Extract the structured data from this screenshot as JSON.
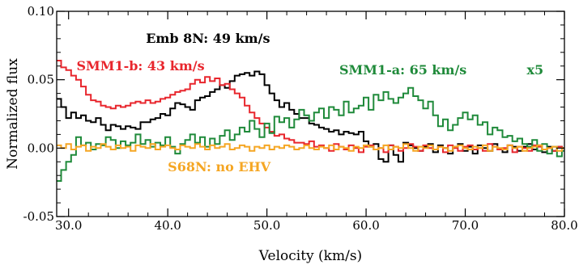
{
  "chart_data": {
    "type": "line",
    "xlabel": "Velocity (km/s)",
    "ylabel": "Normalized flux",
    "xlim": [
      28.8,
      80.0
    ],
    "ylim": [
      -0.05,
      0.1
    ],
    "x_ticks": [
      30.0,
      40.0,
      50.0,
      60.0,
      70.0,
      80.0
    ],
    "x_tick_labels": [
      "30.0",
      "40.0",
      "50.0",
      "60.0",
      "70.0",
      "80.0"
    ],
    "y_ticks": [
      -0.05,
      0.0,
      0.05,
      0.1
    ],
    "y_tick_labels": [
      "-0.05",
      "0.00",
      "0.05",
      "0.10"
    ],
    "grid": false,
    "annotations": [
      {
        "text": "Emb 8N: 49 km/s",
        "color": "#000000",
        "x": 37.8,
        "y": 0.077
      },
      {
        "text": "SMM1-b: 43 km/s",
        "color": "#e8262d",
        "x": 30.8,
        "y": 0.057
      },
      {
        "text": "SMM1-a: 65 km/s",
        "color": "#1f8a3a",
        "x": 57.3,
        "y": 0.054
      },
      {
        "text": "x5",
        "color": "#1f8a3a",
        "x": 76.2,
        "y": 0.054
      },
      {
        "text": "S68N: no EHV",
        "color": "#f5a623",
        "x": 40.0,
        "y": -0.017
      }
    ],
    "series": [
      {
        "color": "#000000",
        "x": [
          29,
          29.5,
          30,
          30.5,
          31,
          31.5,
          32,
          32.5,
          33,
          33.5,
          34,
          34.5,
          35,
          35.5,
          36,
          36.5,
          37,
          37.5,
          38,
          38.5,
          39,
          39.5,
          40,
          40.5,
          41,
          41.5,
          42,
          42.5,
          43,
          43.5,
          44,
          44.5,
          45,
          45.5,
          46,
          46.5,
          47,
          47.5,
          48,
          48.5,
          49,
          49.5,
          50,
          50.5,
          51,
          51.5,
          52,
          52.5,
          53,
          53.5,
          54,
          54.5,
          55,
          55.5,
          56,
          56.5,
          57,
          57.5,
          58,
          58.5,
          59,
          59.5,
          60,
          60.5,
          61,
          61.5,
          62,
          62.5,
          63,
          63.5,
          64,
          64.5,
          65,
          65.5,
          66,
          66.5,
          67,
          67.5,
          68,
          68.5,
          69,
          69.5,
          70,
          70.5,
          71,
          71.5,
          72,
          72.5,
          73,
          73.5,
          74,
          74.5,
          75,
          75.5,
          76,
          76.5,
          77,
          77.5,
          78,
          78.5,
          79,
          79.5,
          80
        ],
        "values": [
          0.036,
          0.03,
          0.022,
          0.026,
          0.022,
          0.024,
          0.02,
          0.019,
          0.022,
          0.017,
          0.013,
          0.017,
          0.016,
          0.014,
          0.016,
          0.015,
          0.014,
          0.019,
          0.019,
          0.021,
          0.022,
          0.025,
          0.024,
          0.029,
          0.033,
          0.032,
          0.03,
          0.028,
          0.035,
          0.037,
          0.038,
          0.041,
          0.043,
          0.046,
          0.044,
          0.049,
          0.053,
          0.054,
          0.055,
          0.053,
          0.056,
          0.054,
          0.046,
          0.04,
          0.035,
          0.03,
          0.033,
          0.028,
          0.025,
          0.022,
          0.022,
          0.018,
          0.017,
          0.015,
          0.014,
          0.012,
          0.013,
          0.01,
          0.012,
          0.011,
          0.01,
          0.012,
          0.005,
          0.001,
          0.003,
          -0.008,
          -0.01,
          0.002,
          -0.005,
          -0.01,
          0.004,
          0.002,
          0.0,
          -0.002,
          0.001,
          0.003,
          -0.003,
          0.002,
          0.0,
          -0.004,
          0.001,
          0.003,
          -0.002,
          0.001,
          -0.004,
          0.002,
          0.0,
          -0.002,
          0.003,
          -0.001,
          -0.003,
          0.002,
          0.001,
          -0.002,
          0.001,
          0.003,
          -0.001,
          0.002,
          -0.003,
          0.001,
          -0.002,
          0.001,
          0.0
        ]
      },
      {
        "color": "#e8262d",
        "x": [
          29,
          29.5,
          30,
          30.5,
          31,
          31.5,
          32,
          32.5,
          33,
          33.5,
          34,
          34.5,
          35,
          35.5,
          36,
          36.5,
          37,
          37.5,
          38,
          38.5,
          39,
          39.5,
          40,
          40.5,
          41,
          41.5,
          42,
          42.5,
          43,
          43.5,
          44,
          44.5,
          45,
          45.5,
          46,
          46.5,
          47,
          47.5,
          48,
          48.5,
          49,
          49.5,
          50,
          50.5,
          51,
          51.5,
          52,
          52.5,
          53,
          53.5,
          54,
          54.5,
          55,
          55.5,
          56,
          56.5,
          57,
          57.5,
          58,
          58.5,
          59,
          59.5,
          60,
          60.5,
          61,
          61.5,
          62,
          62.5,
          63,
          63.5,
          64,
          64.5,
          65,
          65.5,
          66,
          66.5,
          67,
          67.5,
          68,
          68.5,
          69,
          69.5,
          70,
          70.5,
          71,
          71.5,
          72,
          72.5,
          73,
          73.5,
          74,
          74.5,
          75,
          75.5,
          76,
          76.5,
          77,
          77.5,
          78,
          78.5,
          79,
          79.5,
          80
        ],
        "values": [
          0.064,
          0.059,
          0.057,
          0.053,
          0.05,
          0.045,
          0.039,
          0.035,
          0.034,
          0.031,
          0.03,
          0.029,
          0.031,
          0.03,
          0.031,
          0.033,
          0.034,
          0.033,
          0.035,
          0.033,
          0.034,
          0.036,
          0.037,
          0.039,
          0.041,
          0.042,
          0.043,
          0.047,
          0.05,
          0.048,
          0.052,
          0.049,
          0.051,
          0.046,
          0.047,
          0.043,
          0.04,
          0.037,
          0.031,
          0.026,
          0.022,
          0.018,
          0.015,
          0.012,
          0.009,
          0.01,
          0.007,
          0.006,
          0.004,
          0.004,
          0.003,
          0.005,
          0.001,
          0.002,
          0.0,
          -0.002,
          0.003,
          0.001,
          -0.001,
          0.002,
          0.0,
          -0.003,
          0.001,
          0.002,
          -0.001,
          0.0,
          -0.003,
          0.002,
          0.001,
          -0.002,
          0.0,
          0.003,
          0.001,
          -0.002,
          0.002,
          0.0,
          -0.001,
          0.001,
          -0.003,
          0.002,
          0.0,
          -0.002,
          0.001,
          0.002,
          -0.001,
          0.0,
          -0.002,
          0.003,
          0.001,
          -0.001,
          0.0,
          0.002,
          -0.003,
          0.001,
          0.0,
          -0.002,
          0.002,
          0.001,
          -0.001,
          0.0,
          -0.002,
          0.001,
          0.0
        ]
      },
      {
        "color": "#1f8a3a",
        "x": [
          29,
          29.5,
          30,
          30.5,
          31,
          31.5,
          32,
          32.5,
          33,
          33.5,
          34,
          34.5,
          35,
          35.5,
          36,
          36.5,
          37,
          37.5,
          38,
          38.5,
          39,
          39.5,
          40,
          40.5,
          41,
          41.5,
          42,
          42.5,
          43,
          43.5,
          44,
          44.5,
          45,
          45.5,
          46,
          46.5,
          47,
          47.5,
          48,
          48.5,
          49,
          49.5,
          50,
          50.5,
          51,
          51.5,
          52,
          52.5,
          53,
          53.5,
          54,
          54.5,
          55,
          55.5,
          56,
          56.5,
          57,
          57.5,
          58,
          58.5,
          59,
          59.5,
          60,
          60.5,
          61,
          61.5,
          62,
          62.5,
          63,
          63.5,
          64,
          64.5,
          65,
          65.5,
          66,
          66.5,
          67,
          67.5,
          68,
          68.5,
          69,
          69.5,
          70,
          70.5,
          71,
          71.5,
          72,
          72.5,
          73,
          73.5,
          74,
          74.5,
          75,
          75.5,
          76,
          76.5,
          77,
          77.5,
          78,
          78.5,
          79,
          79.5,
          80
        ],
        "values": [
          -0.024,
          -0.016,
          -0.01,
          -0.005,
          0.008,
          0.002,
          0.004,
          -0.001,
          0.003,
          0.002,
          0.008,
          0.006,
          0.0,
          0.005,
          0.002,
          0.004,
          0.01,
          0.003,
          0.006,
          0.001,
          0.004,
          0.002,
          0.008,
          0.001,
          -0.004,
          0.003,
          0.006,
          0.01,
          0.004,
          0.008,
          0.001,
          0.007,
          0.003,
          0.009,
          0.013,
          0.006,
          0.01,
          0.015,
          0.012,
          0.02,
          0.014,
          0.008,
          0.018,
          0.011,
          0.023,
          0.019,
          0.022,
          0.015,
          0.021,
          0.028,
          0.024,
          0.02,
          0.026,
          0.029,
          0.022,
          0.03,
          0.028,
          0.024,
          0.034,
          0.026,
          0.029,
          0.031,
          0.037,
          0.028,
          0.039,
          0.035,
          0.041,
          0.036,
          0.033,
          0.037,
          0.04,
          0.044,
          0.038,
          0.035,
          0.029,
          0.034,
          0.024,
          0.016,
          0.021,
          0.013,
          0.017,
          0.022,
          0.026,
          0.021,
          0.024,
          0.017,
          0.019,
          0.01,
          0.015,
          0.013,
          0.008,
          0.009,
          0.005,
          0.007,
          0.003,
          0.001,
          0.006,
          -0.002,
          0.003,
          -0.004,
          0.001,
          -0.006,
          -0.002
        ]
      },
      {
        "color": "#f5a623",
        "x": [
          29,
          29.5,
          30,
          30.5,
          31,
          31.5,
          32,
          32.5,
          33,
          33.5,
          34,
          34.5,
          35,
          35.5,
          36,
          36.5,
          37,
          37.5,
          38,
          38.5,
          39,
          39.5,
          40,
          40.5,
          41,
          41.5,
          42,
          42.5,
          43,
          43.5,
          44,
          44.5,
          45,
          45.5,
          46,
          46.5,
          47,
          47.5,
          48,
          48.5,
          49,
          49.5,
          50,
          50.5,
          51,
          51.5,
          52,
          52.5,
          53,
          53.5,
          54,
          54.5,
          55,
          55.5,
          56,
          56.5,
          57,
          57.5,
          58,
          58.5,
          59,
          59.5,
          60,
          60.5,
          61,
          61.5,
          62,
          62.5,
          63,
          63.5,
          64,
          64.5,
          65,
          65.5,
          66,
          66.5,
          67,
          67.5,
          68,
          68.5,
          69,
          69.5,
          70,
          70.5,
          71,
          71.5,
          72,
          72.5,
          73,
          73.5,
          74,
          74.5,
          75,
          75.5,
          76,
          76.5,
          77,
          77.5,
          78,
          78.5,
          79,
          79.5,
          80
        ],
        "values": [
          0.002,
          0.0,
          0.003,
          -0.001,
          0.001,
          0.002,
          -0.002,
          0.001,
          0.0,
          0.003,
          0.001,
          -0.001,
          0.002,
          0.0,
          0.001,
          -0.002,
          0.002,
          0.001,
          0.0,
          0.003,
          -0.001,
          0.001,
          0.002,
          0.0,
          -0.001,
          0.002,
          0.001,
          0.0,
          0.003,
          0.001,
          -0.001,
          0.002,
          0.0,
          0.001,
          0.003,
          -0.001,
          0.0,
          0.002,
          0.001,
          -0.002,
          0.001,
          0.0,
          0.002,
          -0.001,
          0.001,
          0.0,
          0.002,
          0.001,
          -0.001,
          0.0,
          0.002,
          0.0,
          -0.001,
          0.001,
          0.0,
          0.002,
          -0.001,
          0.001,
          0.0,
          -0.002,
          0.001,
          0.0,
          0.002,
          0.001,
          -0.001,
          0.0,
          0.002,
          -0.001,
          0.001,
          0.0,
          0.003,
          0.0,
          -0.002,
          0.001,
          0.0,
          0.002,
          -0.001,
          0.001,
          0.0,
          -0.002,
          0.001,
          0.002,
          0.0,
          -0.001,
          0.001,
          0.0,
          0.002,
          -0.002,
          0.001,
          0.0,
          -0.001,
          0.002,
          0.0,
          0.001,
          -0.002,
          0.0,
          0.001,
          0.002,
          -0.001,
          0.0,
          0.001,
          -0.002,
          0.0
        ]
      }
    ]
  }
}
